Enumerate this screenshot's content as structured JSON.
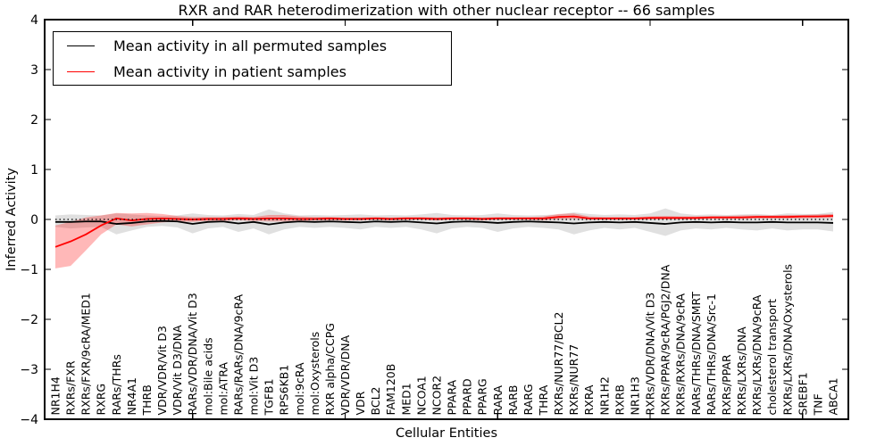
{
  "figure": {
    "title": "RXR and RAR heterodimerization with other nuclear receptor -- 66 samples",
    "xlabel": "Cellular Entities",
    "ylabel": "Inferred Activity"
  },
  "legend": {
    "entries": [
      {
        "label": "Mean activity in all permuted samples",
        "color": "#000000"
      },
      {
        "label": "Mean activity in patient samples",
        "color": "#ff0000"
      }
    ]
  },
  "chart_data": {
    "type": "line",
    "title": "RXR and RAR heterodimerization with other nuclear receptor -- 66 samples",
    "xlabel": "Cellular Entities",
    "ylabel": "Inferred Activity",
    "ylim": [
      -4,
      4
    ],
    "yticks": [
      -4,
      -3,
      -2,
      -1,
      0,
      1,
      2,
      3,
      4
    ],
    "x_tick_values": [
      10,
      20,
      30,
      40,
      50
    ],
    "grid": false,
    "legend_position": "upper left",
    "reference_line": {
      "y": 0,
      "style": "dotted",
      "color": "#000000"
    },
    "categories": [
      "NR1H4",
      "RXRs/FXR",
      "RXRs/FXR/9cRA/MED1",
      "RXRG",
      "RARs/THRs",
      "NR4A1",
      "THRB",
      "VDR/VDR/Vit D3",
      "VDR/Vit D3/DNA",
      "RARs/VDR/DNA/Vit D3",
      "mol:Bile acids",
      "mol:ATRA",
      "RARs/RARs/DNA/9cRA",
      "mol:Vit D3",
      "TGFB1",
      "RPS6KB1",
      "mol:9cRA",
      "mol:Oxysterols",
      "RXR alpha/CCPG",
      "VDR/VDR/DNA",
      "VDR",
      "BCL2",
      "FAM120B",
      "MED1",
      "NCOA1",
      "NCOR2",
      "PPARA",
      "PPARD",
      "PPARG",
      "RARA",
      "RARB",
      "RARG",
      "THRA",
      "RXRs/NUR77/BCL2",
      "RXRs/NUR77",
      "RXRA",
      "NR1H2",
      "RXRB",
      "NR1H3",
      "RXRs/VDR/DNA/Vit D3",
      "RXRs/PPAR/9cRA/PGJ2/DNA",
      "RXRs/RXRs/DNA/9cRA",
      "RARs/THRs/DNA/SMRT",
      "RARs/THRs/DNA/Src-1",
      "RXRs/PPAR",
      "RXRs/LXRs/DNA",
      "RXRs/LXRs/DNA/9cRA",
      "cholesterol transport",
      "RXRs/LXRs/DNA/Oxysterols",
      "SREBF1",
      "TNF",
      "ABCA1"
    ],
    "series": [
      {
        "name": "Mean activity in all permuted samples",
        "color": "#000000",
        "band_color": "rgba(0,0,0,0.12)",
        "values": [
          -0.05,
          -0.05,
          -0.04,
          -0.04,
          -0.09,
          -0.07,
          -0.04,
          -0.03,
          -0.04,
          -0.09,
          -0.05,
          -0.04,
          -0.08,
          -0.05,
          -0.1,
          -0.06,
          -0.04,
          -0.05,
          -0.04,
          -0.05,
          -0.06,
          -0.04,
          -0.05,
          -0.04,
          -0.06,
          -0.08,
          -0.05,
          -0.04,
          -0.05,
          -0.07,
          -0.05,
          -0.04,
          -0.05,
          -0.06,
          -0.08,
          -0.06,
          -0.05,
          -0.06,
          -0.05,
          -0.07,
          -0.09,
          -0.06,
          -0.05,
          -0.06,
          -0.05,
          -0.06,
          -0.06,
          -0.05,
          -0.06,
          -0.06,
          -0.06,
          -0.07
        ],
        "band_low": [
          -0.15,
          -0.18,
          -0.16,
          -0.15,
          -0.3,
          -0.22,
          -0.15,
          -0.13,
          -0.16,
          -0.28,
          -0.18,
          -0.15,
          -0.25,
          -0.18,
          -0.3,
          -0.2,
          -0.15,
          -0.17,
          -0.15,
          -0.17,
          -0.2,
          -0.15,
          -0.17,
          -0.15,
          -0.2,
          -0.28,
          -0.18,
          -0.15,
          -0.17,
          -0.25,
          -0.18,
          -0.15,
          -0.17,
          -0.2,
          -0.3,
          -0.22,
          -0.17,
          -0.2,
          -0.17,
          -0.25,
          -0.33,
          -0.22,
          -0.18,
          -0.2,
          -0.17,
          -0.2,
          -0.22,
          -0.18,
          -0.22,
          -0.2,
          -0.2,
          -0.24
        ],
        "band_high": [
          0.08,
          0.1,
          0.09,
          0.08,
          0.12,
          0.1,
          0.08,
          0.07,
          0.08,
          0.12,
          0.09,
          0.08,
          0.11,
          0.09,
          0.2,
          0.12,
          0.08,
          0.09,
          0.08,
          0.09,
          0.1,
          0.08,
          0.09,
          0.08,
          0.1,
          0.13,
          0.09,
          0.08,
          0.09,
          0.12,
          0.09,
          0.08,
          0.09,
          0.1,
          0.14,
          0.11,
          0.09,
          0.1,
          0.09,
          0.12,
          0.22,
          0.12,
          0.09,
          0.1,
          0.09,
          0.1,
          0.11,
          0.09,
          0.12,
          0.11,
          0.11,
          0.15
        ]
      },
      {
        "name": "Mean activity in patient samples",
        "color": "#ff0000",
        "band_color": "rgba(255,0,0,0.28)",
        "values": [
          -0.55,
          -0.44,
          -0.3,
          -0.12,
          0.02,
          -0.02,
          0.01,
          0.02,
          0.01,
          0.0,
          0.01,
          0.01,
          0.02,
          0.01,
          0.02,
          0.02,
          0.01,
          0.01,
          0.02,
          0.01,
          0.01,
          0.02,
          0.01,
          0.02,
          0.02,
          0.01,
          0.02,
          0.02,
          0.01,
          0.02,
          0.02,
          0.02,
          0.02,
          0.05,
          0.06,
          0.02,
          0.02,
          0.02,
          0.02,
          0.03,
          0.03,
          0.03,
          0.03,
          0.04,
          0.04,
          0.04,
          0.05,
          0.05,
          0.05,
          0.06,
          0.06,
          0.07
        ],
        "band_low": [
          -0.98,
          -0.93,
          -0.62,
          -0.3,
          -0.1,
          -0.14,
          -0.1,
          -0.06,
          -0.04,
          -0.05,
          -0.03,
          -0.03,
          -0.02,
          -0.03,
          -0.04,
          -0.04,
          -0.03,
          -0.02,
          -0.02,
          -0.02,
          -0.02,
          -0.01,
          -0.02,
          -0.01,
          -0.01,
          -0.02,
          -0.01,
          -0.01,
          -0.02,
          -0.01,
          -0.01,
          -0.01,
          -0.02,
          0.0,
          0.01,
          -0.01,
          -0.01,
          -0.01,
          -0.01,
          0.0,
          0.0,
          0.0,
          0.0,
          0.01,
          0.01,
          0.01,
          0.02,
          0.02,
          0.02,
          0.02,
          0.03,
          0.03
        ],
        "band_high": [
          -0.12,
          -0.05,
          0.04,
          0.08,
          0.13,
          0.12,
          0.13,
          0.11,
          0.07,
          0.05,
          0.05,
          0.05,
          0.06,
          0.05,
          0.09,
          0.09,
          0.06,
          0.05,
          0.05,
          0.04,
          0.04,
          0.05,
          0.04,
          0.05,
          0.05,
          0.04,
          0.05,
          0.05,
          0.04,
          0.05,
          0.05,
          0.05,
          0.06,
          0.11,
          0.12,
          0.06,
          0.05,
          0.05,
          0.05,
          0.06,
          0.07,
          0.06,
          0.06,
          0.07,
          0.07,
          0.08,
          0.08,
          0.08,
          0.09,
          0.09,
          0.1,
          0.11
        ]
      }
    ]
  }
}
